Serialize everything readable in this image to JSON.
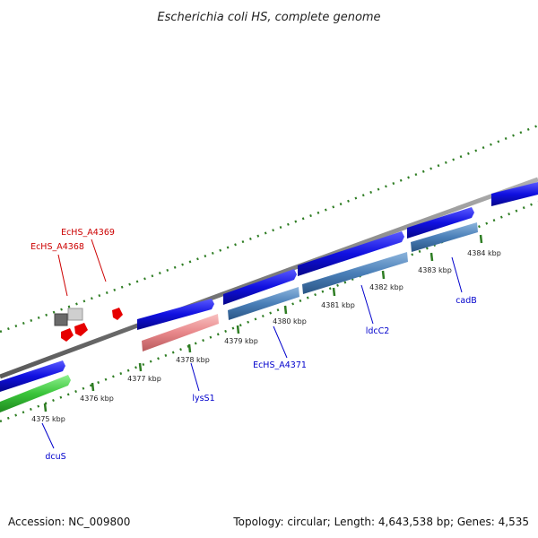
{
  "title": "Escherichia coli HS, complete genome",
  "footer": {
    "accession": "Accession: NC_009800",
    "topology": "Topology: circular; Length: 4,643,538 bp; Genes: 4,535"
  },
  "colors": {
    "backbone": "#888888",
    "tick": "#2e7d23",
    "forward_gene": "#1010e0",
    "reverse_gene": "#4a7fb8",
    "rna_gene": "#e8878a",
    "other_gene": "#3ac43a",
    "label_blue": "#0000cc",
    "label_red": "#cc0000"
  },
  "ticks": [
    {
      "label": "4375 kbp"
    },
    {
      "label": "4376 kbp"
    },
    {
      "label": "4377 kbp"
    },
    {
      "label": "4378 kbp"
    },
    {
      "label": "4379 kbp"
    },
    {
      "label": "4380 kbp"
    },
    {
      "label": "4381 kbp"
    },
    {
      "label": "4382 kbp"
    },
    {
      "label": "4383 kbp"
    },
    {
      "label": "4384 kbp"
    }
  ],
  "gene_labels": [
    {
      "text": "EcHS_A4368",
      "color": "red"
    },
    {
      "text": "EcHS_A4369",
      "color": "red"
    },
    {
      "text": "dcuS",
      "color": "blue"
    },
    {
      "text": "lysS1",
      "color": "blue"
    },
    {
      "text": "EcHS_A4371",
      "color": "blue"
    },
    {
      "text": "ldcC2",
      "color": "blue"
    },
    {
      "text": "cadB",
      "color": "blue"
    }
  ]
}
